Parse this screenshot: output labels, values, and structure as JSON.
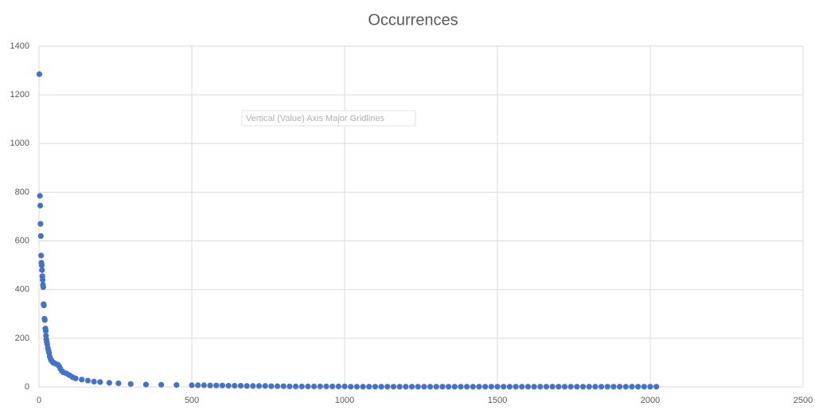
{
  "chart_data": {
    "type": "scatter",
    "title": "Occurrences",
    "tooltip": "Vertical (Value) Axis Major Gridlines",
    "x": [
      1,
      3,
      4,
      5,
      6,
      7,
      8,
      9,
      10,
      11,
      12,
      13,
      14,
      15,
      16,
      18,
      19,
      21,
      22,
      23,
      24,
      25,
      27,
      29,
      31,
      33,
      35,
      38,
      40,
      43,
      46,
      50,
      55,
      60,
      63,
      66,
      70,
      75,
      80,
      90,
      100,
      110,
      120,
      140,
      160,
      180,
      200,
      230,
      260,
      300,
      350,
      400,
      450,
      500,
      520,
      540,
      560,
      580,
      600,
      620,
      640,
      660,
      680,
      700,
      720,
      740,
      760,
      780,
      800,
      820,
      840,
      860,
      880,
      900,
      920,
      940,
      960,
      980,
      1000,
      1020,
      1040,
      1060,
      1080,
      1100,
      1120,
      1140,
      1160,
      1180,
      1200,
      1220,
      1240,
      1260,
      1280,
      1300,
      1320,
      1340,
      1360,
      1380,
      1400,
      1420,
      1440,
      1460,
      1480,
      1500,
      1520,
      1540,
      1560,
      1580,
      1600,
      1620,
      1640,
      1660,
      1680,
      1700,
      1720,
      1740,
      1760,
      1780,
      1800,
      1820,
      1840,
      1860,
      1880,
      1900,
      1920,
      1940,
      1960,
      1980,
      2000,
      2020
    ],
    "series": [
      {
        "name": "Occurrences",
        "color": "#4472c4",
        "values": [
          1285,
          785,
          745,
          670,
          620,
          540,
          510,
          500,
          480,
          455,
          440,
          420,
          410,
          340,
          335,
          280,
          275,
          240,
          230,
          210,
          195,
          185,
          175,
          160,
          150,
          140,
          125,
          115,
          110,
          105,
          100,
          98,
          95,
          92,
          90,
          85,
          75,
          65,
          60,
          55,
          48,
          40,
          35,
          30,
          26,
          22,
          20,
          17,
          15,
          12,
          10,
          9,
          8,
          7,
          7,
          7,
          6,
          6,
          6,
          5,
          5,
          5,
          4,
          4,
          4,
          4,
          3,
          3,
          3,
          2,
          2,
          2,
          2,
          2,
          2,
          2,
          2,
          2,
          2,
          1,
          1,
          1,
          1,
          1,
          1,
          1,
          1,
          1,
          1,
          1,
          1,
          1,
          1,
          1,
          1,
          1,
          1,
          1,
          1,
          1,
          1,
          1,
          1,
          1,
          1,
          1,
          1,
          1,
          1,
          1,
          1,
          1,
          1,
          1,
          1,
          1,
          1,
          1,
          1,
          1,
          1,
          1,
          1,
          1,
          1,
          1,
          1,
          1,
          1,
          1
        ]
      }
    ],
    "xlim": [
      0,
      2500
    ],
    "xticks": [
      0,
      500,
      1000,
      1500,
      2000,
      2500
    ],
    "ylim": [
      0,
      1400
    ],
    "yticks": [
      0,
      200,
      400,
      600,
      800,
      1000,
      1200,
      1400
    ],
    "grid": true
  }
}
